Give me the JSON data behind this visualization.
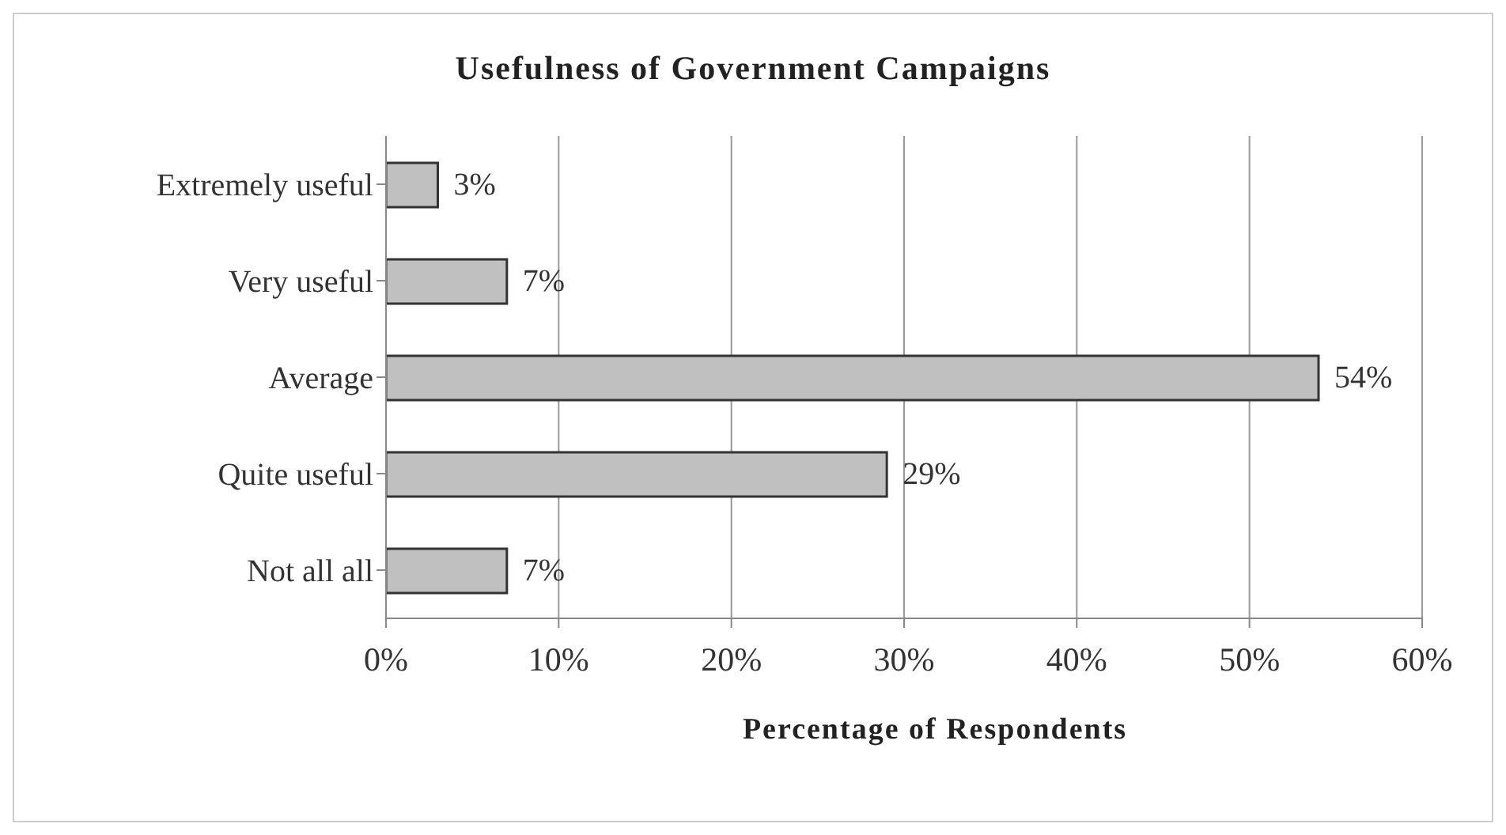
{
  "chart_data": {
    "type": "bar",
    "orientation": "horizontal",
    "title": "Usefulness of Government Campaigns",
    "xlabel": "Percentage of Respondents",
    "categories": [
      "Extremely useful",
      "Very useful",
      "Average",
      "Quite useful",
      "Not all all"
    ],
    "values": [
      3,
      7,
      54,
      29,
      7
    ],
    "value_labels": [
      "3%",
      "7%",
      "54%",
      "29%",
      "7%"
    ],
    "color": "#c0c0c0",
    "xlim": [
      0,
      60
    ],
    "xticks": [
      {
        "value": 0,
        "label": "0%"
      },
      {
        "value": 10,
        "label": "10%"
      },
      {
        "value": 20,
        "label": "20%"
      },
      {
        "value": 30,
        "label": "30%"
      },
      {
        "value": 40,
        "label": "40%"
      },
      {
        "value": 50,
        "label": "50%"
      },
      {
        "value": 60,
        "label": "60%"
      }
    ],
    "grid": "x",
    "legend": false
  }
}
